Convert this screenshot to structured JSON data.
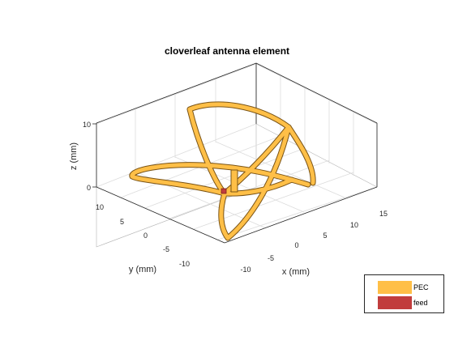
{
  "figure": {
    "title": "cloverleaf antenna element"
  },
  "axes": {
    "xlabel": "x (mm)",
    "ylabel": "y (mm)",
    "zlabel": "z (mm)",
    "x_ticks": [
      "-10",
      "-5",
      "0",
      "5",
      "10",
      "15"
    ],
    "y_ticks": [
      "10",
      "5",
      "0",
      "-5",
      "-10"
    ],
    "z_ticks": [
      "10",
      "0"
    ],
    "grid": true,
    "box": "on"
  },
  "legend": {
    "placement": "bottom-right",
    "items": [
      {
        "label": "PEC",
        "color": "#FFBF47"
      },
      {
        "label": "feed",
        "color": "#C13D3D"
      }
    ]
  },
  "colors": {
    "pec": "#FFBF47",
    "feed": "#C13D3D",
    "axis": "#262626",
    "grid": "#DCDCDC"
  }
}
